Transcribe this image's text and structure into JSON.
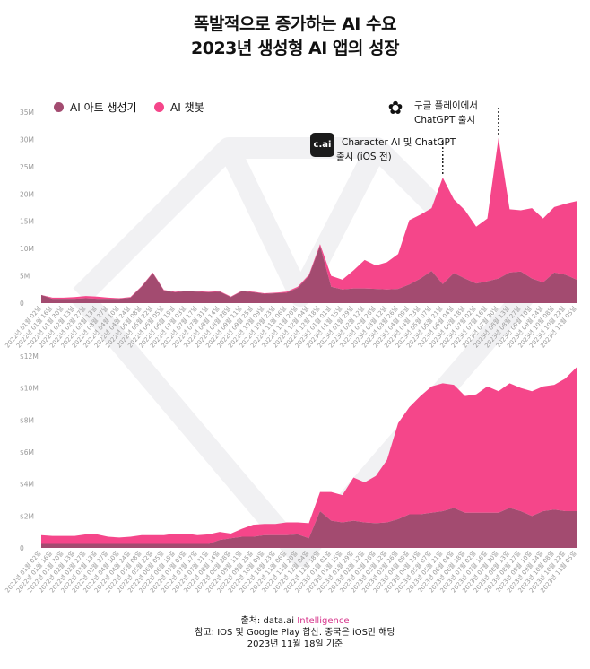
{
  "title": [
    "폭발적으로 증가하는 AI 수요",
    "2023년 생성형 AI 앱의 성장"
  ],
  "colors": {
    "art": "#a34b70",
    "chatbot": "#f5468a"
  },
  "legend": [
    {
      "label": "AI 아트 생성기",
      "color": "#a34b70"
    },
    {
      "label": "AI 챗봇",
      "color": "#f5468a"
    }
  ],
  "annotations": [
    {
      "icon": "c.ai",
      "lines": [
        "Character AI 및 ChatGPT",
        "출시 (iOS 전)"
      ],
      "date": "2023년 05월 21일"
    },
    {
      "icon": "openai-icon",
      "lines": [
        "구글 플레이에서",
        "ChatGPT 출시"
      ],
      "date": "2023년 07월 30일"
    }
  ],
  "footer": {
    "source_prefix": "출처: data.ai ",
    "source_brand": "Intelligence",
    "note": "참고: IOS 및 Google Play 합산. 중국은 iOS만 해당",
    "asof": "2023년 11월 18일 기준"
  },
  "chart_data": [
    {
      "type": "area",
      "stacked": true,
      "ylim": [
        0,
        35
      ],
      "yticks": [
        "0",
        "5M",
        "10M",
        "15M",
        "20M",
        "25M",
        "30M",
        "35M"
      ],
      "ytick_values": [
        0,
        5,
        10,
        15,
        20,
        25,
        30,
        35
      ],
      "legend_position": "top-left",
      "categories": [
        "2022년 01월 02일",
        "2022년 01월 16일",
        "2022년 01월 30일",
        "2022년 02월 13일",
        "2022년 02월 27일",
        "2022년 03월 13일",
        "2022년 03월 27일",
        "2022년 04월 10일",
        "2022년 04월 24일",
        "2022년 05월 08일",
        "2022년 05월 22일",
        "2022년 06월 05일",
        "2022년 06월 19일",
        "2022년 07월 03일",
        "2022년 07월 17일",
        "2022년 07월 31일",
        "2022년 08월 14일",
        "2022년 08월 28일",
        "2022년 09월 11일",
        "2022년 09월 25일",
        "2022년 10월 09일",
        "2022년 10월 23일",
        "2022년 11월 06일",
        "2022년 11월 20일",
        "2022년 12월 04일",
        "2022년 12월 18일",
        "2023년 01월 01일",
        "2023년 01월 15일",
        "2023년 01월 29일",
        "2023년 02월 12일",
        "2023년 02월 26일",
        "2023년 03월 12일",
        "2023년 03월 26일",
        "2023년 04월 09일",
        "2023년 04월 23일",
        "2023년 05월 07일",
        "2023년 05월 21일",
        "2023년 06월 04일",
        "2023년 06월 18일",
        "2023년 07월 02일",
        "2023년 07월 16일",
        "2023년 07월 30일",
        "2023년 08월 13일",
        "2023년 08월 27일",
        "2023년 09월 10일",
        "2023년 09월 24일",
        "2023년 10월 08일",
        "2023년 10월 22일",
        "2023년 11월 05일"
      ],
      "series": [
        {
          "name": "AI 아트 생성기",
          "values": [
            1.5,
            0.8,
            0.8,
            0.8,
            0.9,
            0.8,
            0.8,
            0.8,
            1.0,
            3.0,
            5.5,
            2.3,
            2.0,
            2.2,
            2.1,
            2.0,
            2.1,
            1.1,
            2.2,
            2.0,
            1.7,
            1.8,
            1.9,
            2.8,
            5.0,
            10.5,
            3.0,
            2.5,
            2.7,
            2.7,
            2.6,
            2.5,
            2.6,
            3.4,
            4.5,
            5.9,
            3.5,
            5.5,
            4.5,
            3.6,
            4.0,
            4.5,
            5.6,
            5.8,
            4.5,
            3.8,
            5.6,
            5.2,
            4.3
          ]
        },
        {
          "name": "AI 챗봇",
          "values": [
            0,
            0.2,
            0.2,
            0.3,
            0.4,
            0.4,
            0.2,
            0.1,
            0.1,
            0.1,
            0.1,
            0.1,
            0.1,
            0.1,
            0.1,
            0.1,
            0.1,
            0.1,
            0.1,
            0.1,
            0.1,
            0.1,
            0.2,
            0.2,
            0.2,
            0.3,
            2.0,
            1.8,
            3.3,
            5.2,
            4.3,
            5.0,
            6.4,
            11.8,
            11.7,
            11.5,
            19.5,
            13.5,
            12.5,
            10.4,
            11.5,
            25.8,
            11.6,
            11.2,
            12.9,
            11.7,
            12.0,
            13.0,
            14.4
          ]
        }
      ]
    },
    {
      "type": "area",
      "stacked": true,
      "ylim": [
        0,
        12
      ],
      "yticks": [
        "0",
        "$2M",
        "$4M",
        "$6M",
        "$8M",
        "$10M",
        "$12M"
      ],
      "ytick_values": [
        0,
        2,
        4,
        6,
        8,
        10,
        12
      ],
      "categories": [
        "2022년 01월 02일",
        "2022년 01월 16일",
        "2022년 01월 30일",
        "2022년 02월 13일",
        "2022년 02월 27일",
        "2022년 03월 13일",
        "2022년 03월 27일",
        "2022년 04월 10일",
        "2022년 04월 24일",
        "2022년 05월 08일",
        "2022년 05월 22일",
        "2022년 06월 05일",
        "2022년 06월 19일",
        "2022년 07월 03일",
        "2022년 07월 17일",
        "2022년 07월 31일",
        "2022년 08월 14일",
        "2022년 08월 28일",
        "2022년 09월 11일",
        "2022년 09월 25일",
        "2022년 10월 09일",
        "2022년 10월 23일",
        "2022년 11월 06일",
        "2022년 11월 20일",
        "2022년 12월 04일",
        "2022년 12월 18일",
        "2023년 01월 01일",
        "2023년 01월 15일",
        "2023년 01월 29일",
        "2023년 02월 12일",
        "2023년 02월 26일",
        "2023년 03월 12일",
        "2023년 03월 26일",
        "2023년 04월 09일",
        "2023년 04월 23일",
        "2023년 05월 07일",
        "2023년 05월 21일",
        "2023년 06월 04일",
        "2023년 06월 18일",
        "2023년 07월 02일",
        "2023년 07월 16일",
        "2023년 07월 30일",
        "2023년 08월 13일",
        "2023년 08월 27일",
        "2023년 09월 10일",
        "2023년 09월 24일",
        "2023년 10월 08일",
        "2023년 10월 22일",
        "2023년 11월 05일"
      ],
      "series": [
        {
          "name": "AI 아트 생성기",
          "values": [
            0.25,
            0.25,
            0.25,
            0.25,
            0.25,
            0.25,
            0.25,
            0.25,
            0.25,
            0.25,
            0.25,
            0.25,
            0.25,
            0.25,
            0.25,
            0.25,
            0.5,
            0.6,
            0.7,
            0.7,
            0.8,
            0.8,
            0.8,
            0.85,
            0.6,
            2.3,
            1.7,
            1.6,
            1.7,
            1.6,
            1.55,
            1.6,
            1.8,
            2.1,
            2.1,
            2.2,
            2.3,
            2.5,
            2.2,
            2.2,
            2.2,
            2.2,
            2.5,
            2.3,
            2.0,
            2.3,
            2.4,
            2.3,
            2.3
          ]
        },
        {
          "name": "AI 챗봇",
          "values": [
            0.55,
            0.5,
            0.5,
            0.5,
            0.6,
            0.6,
            0.45,
            0.4,
            0.45,
            0.55,
            0.55,
            0.55,
            0.65,
            0.65,
            0.55,
            0.6,
            0.5,
            0.3,
            0.5,
            0.75,
            0.7,
            0.7,
            0.8,
            0.75,
            0.95,
            1.2,
            1.8,
            1.7,
            2.7,
            2.5,
            2.95,
            3.9,
            6.0,
            6.7,
            7.4,
            7.9,
            8.0,
            7.7,
            7.3,
            7.4,
            7.9,
            7.6,
            7.8,
            7.7,
            7.8,
            7.8,
            7.8,
            8.3,
            9.0
          ]
        }
      ]
    }
  ]
}
